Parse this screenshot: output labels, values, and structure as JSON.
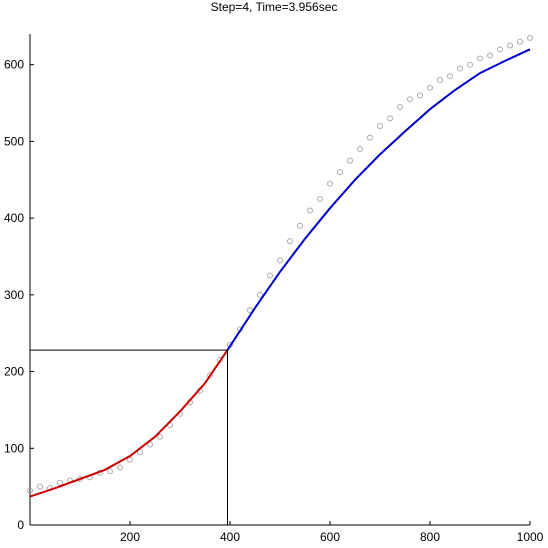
{
  "chart_data": {
    "type": "scatter",
    "title": "Step=4,  Time=3.956sec",
    "xlabel": "",
    "ylabel": "",
    "xlim": [
      0,
      1000
    ],
    "ylim": [
      0,
      640
    ],
    "x_ticks": [
      200,
      400,
      600,
      800,
      1000
    ],
    "y_ticks": [
      0,
      100,
      200,
      300,
      400,
      500,
      600
    ],
    "grid": false,
    "legend": "none",
    "colors": {
      "points": "#aaaaaa",
      "fit_left": "#cc0000",
      "fit_right": "#0000cc",
      "guide": "#000000"
    },
    "marker": {
      "x": 395,
      "y": 228
    },
    "series": [
      {
        "type": "scatter",
        "x": [
          0,
          20,
          40,
          60,
          80,
          100,
          120,
          140,
          160,
          180,
          200,
          220,
          240,
          260,
          280,
          300,
          320,
          340,
          360,
          380,
          400,
          420,
          440,
          460,
          480,
          500,
          520,
          540,
          560,
          580,
          600,
          620,
          640,
          660,
          680,
          700,
          720,
          740,
          760,
          780,
          800,
          820,
          840,
          860,
          880,
          900,
          920,
          940,
          960,
          980,
          1000
        ],
        "y": [
          45,
          50,
          48,
          55,
          58,
          60,
          62,
          68,
          70,
          75,
          85,
          95,
          105,
          115,
          130,
          145,
          160,
          175,
          195,
          215,
          235,
          255,
          280,
          300,
          325,
          345,
          370,
          390,
          410,
          425,
          445,
          460,
          475,
          490,
          505,
          520,
          530,
          545,
          555,
          560,
          570,
          580,
          585,
          595,
          600,
          608,
          612,
          620,
          625,
          630,
          635
        ]
      },
      {
        "type": "line",
        "x": [
          0,
          50,
          100,
          150,
          200,
          250,
          300,
          350,
          395
        ],
        "y": [
          37,
          48,
          60,
          72,
          90,
          115,
          148,
          185,
          228
        ]
      },
      {
        "type": "line",
        "x": [
          395,
          450,
          500,
          550,
          600,
          650,
          700,
          750,
          800,
          850,
          900,
          950,
          1000
        ],
        "y": [
          228,
          283,
          330,
          373,
          413,
          450,
          483,
          513,
          542,
          567,
          589,
          605,
          620
        ]
      }
    ]
  }
}
